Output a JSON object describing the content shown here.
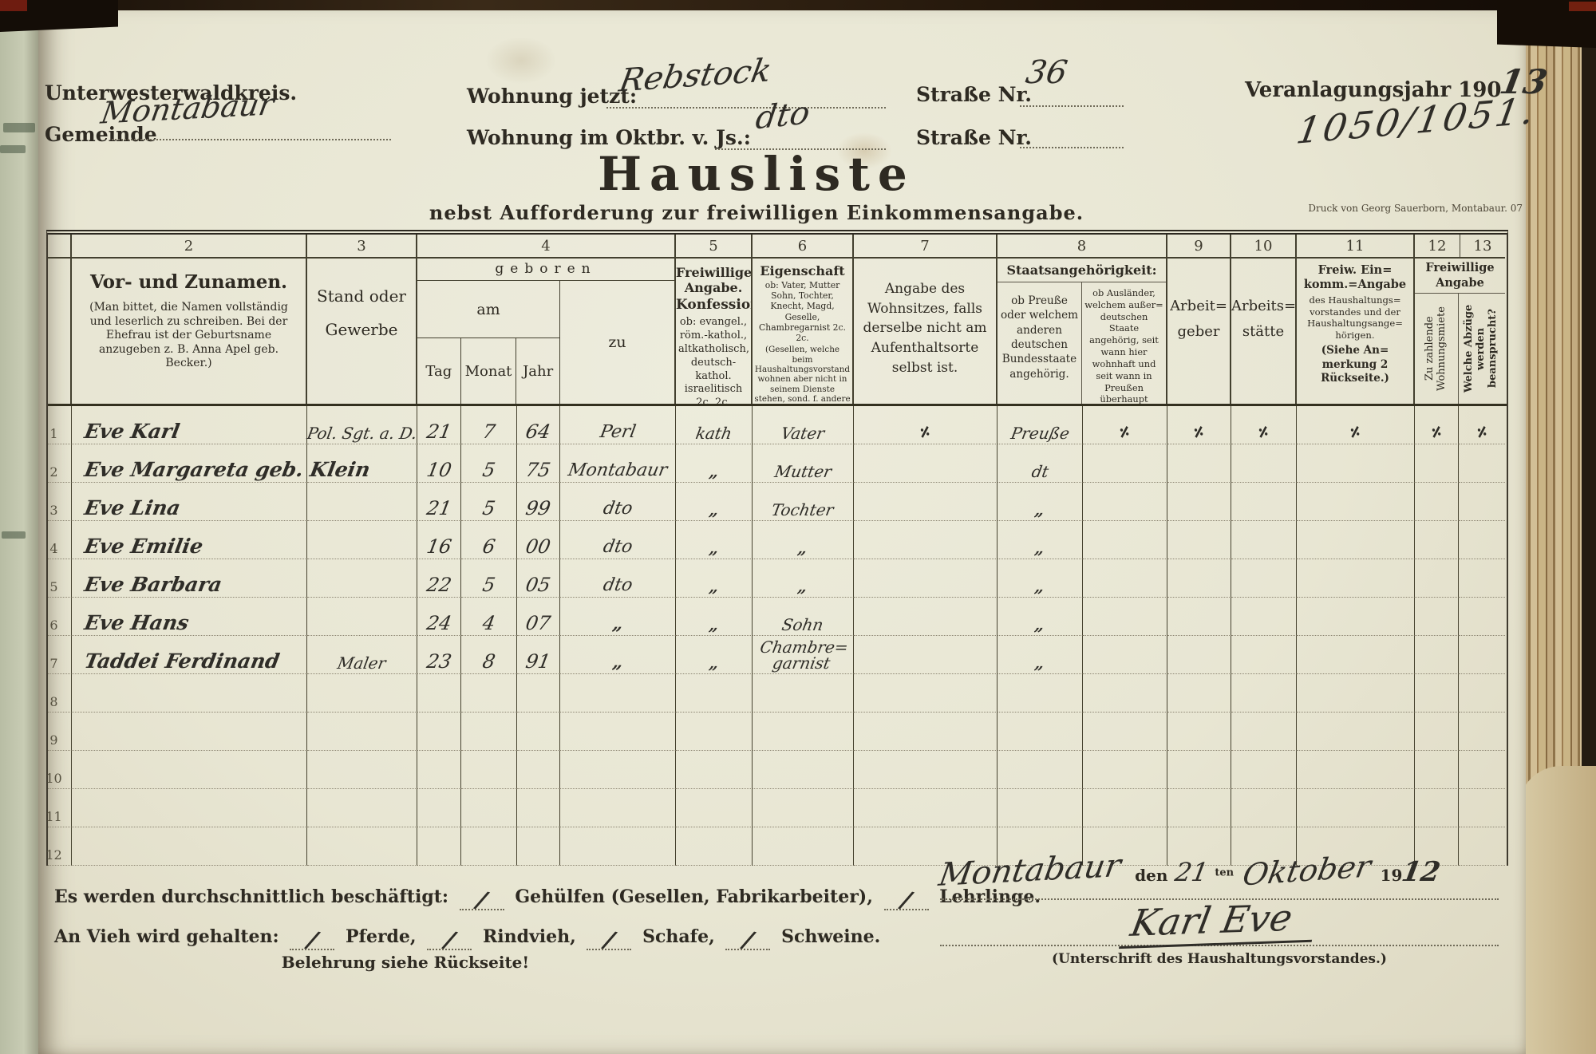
{
  "colors": {
    "paper": "#e8e6d3",
    "ink": "#2e2a22",
    "handwriting": "#2f2d28",
    "binding_dark": "#241c12",
    "page_edge_tan": "#c3ab80"
  },
  "header": {
    "district": "Unterwesterwaldkreis.",
    "gemeinde_label": "Gemeinde",
    "gemeinde_value": "Montabaur",
    "wohnung_jetzt_label": "Wohnung jetzt:",
    "wohnung_jetzt_value": "Rebstock",
    "strasse1_label": "Straße Nr.",
    "strasse1_value": "36",
    "wohnung_okt_label": "Wohnung im Oktbr. v. Js.:",
    "wohnung_okt_value": "dto",
    "strasse2_label": "Straße Nr.",
    "veranlagung_label": "Veranlagungsjahr 190",
    "veranlagung_value": "13",
    "file_number": "1050/1051.",
    "title": "Hausliste",
    "subtitle": "nebst Aufforderung zur freiwilligen Einkommensangabe.",
    "print_note": "Druck von Georg Sauerborn, Montabaur. 07"
  },
  "table": {
    "col_numbers": [
      "2",
      "3",
      "4",
      "5",
      "6",
      "7",
      "8",
      "9",
      "10",
      "11",
      "12",
      "13"
    ],
    "headers": {
      "names_title": "Vor- und Zunamen.",
      "names_note": "(Man bittet, die Namen vollständig und leserlich zu schreiben. Bei der Ehefrau ist der Geburtsname anzugeben z. B. Anna Apel geb. Becker.)",
      "stand": "Stand oder Gewerbe",
      "geboren": "geboren",
      "am": "am",
      "tag": "Tag",
      "monat": "Monat",
      "jahr": "Jahr",
      "zu": "zu",
      "konfession_bold1": "Freiwillige Angabe.",
      "konfession_bold2": "Konfession:",
      "konfession_body": "ob: evangel., röm.-kathol., altkatholisch, deutsch-kathol. israelitisch 2c. 2c.",
      "eigenschaft_title": "Eigenschaft",
      "eigenschaft_sub": "ob: Vater, Mutter Sohn, Tochter, Knecht, Magd, Geselle, Chambregarnist 2c. 2c.",
      "eigenschaft_note": "(Gesellen, welche beim Haushaltungsvorstand wohnen aber nicht in seinem Dienste stehen, sond. f. andere Meister arbeiten, sind als solche genau zu bezeichnen.)",
      "wohnsitz": "Angabe des Wohnsitzes, falls derselbe nicht am Aufenthaltsorte selbst ist.",
      "staat_title": "Staatsangehörigkeit:",
      "staat_a": "ob Preuße oder welchem anderen deutschen Bundesstaate angehörig.",
      "staat_b": "ob Ausländer, welchem außer= deutschen Staate angehörig, seit wann hier wohnhaft und seit wann in Preußen überhaupt wohnhaft.",
      "arbeitgeber": "Arbeit= geber",
      "arbeitsstaette": "Arbeits= stätte",
      "eink_title": "Freiw. Ein= komm.=Angabe",
      "eink_body": "des Haushaltungs= vorstandes und der Haushaltungsange= hörigen.",
      "eink_note": "(Siehe An= merkung 2 Rückseite.)",
      "freiw_title": "Freiwillige Angabe",
      "miete": "Zu zahlende Wohnungsmiete",
      "abzuege": "Welche Abzüge werden beansprucht?"
    },
    "rows": [
      [
        "1",
        "Eve Karl",
        "Pol. Sgt. a. D.",
        "21",
        "7",
        "64",
        "Perl",
        "kath",
        "Vater",
        "÷",
        "Preuße",
        "÷",
        "÷",
        "÷",
        "÷",
        "÷",
        "÷"
      ],
      [
        "2",
        "Eve Margareta geb. Klein",
        "",
        "10",
        "5",
        "75",
        "Montabaur",
        "„",
        "Mutter",
        "",
        "dt",
        "",
        "",
        "",
        "",
        "",
        ""
      ],
      [
        "3",
        "Eve Lina",
        "",
        "21",
        "5",
        "99",
        "dto",
        "„",
        "Tochter",
        "",
        "„",
        "",
        "",
        "",
        "",
        "",
        ""
      ],
      [
        "4",
        "Eve Emilie",
        "",
        "16",
        "6",
        "00",
        "dto",
        "„",
        "„",
        "",
        "„",
        "",
        "",
        "",
        "",
        "",
        ""
      ],
      [
        "5",
        "Eve Barbara",
        "",
        "22",
        "5",
        "05",
        "dto",
        "„",
        "„",
        "",
        "„",
        "",
        "",
        "",
        "",
        "",
        ""
      ],
      [
        "6",
        "Eve Hans",
        "",
        "24",
        "4",
        "07",
        "„",
        "„",
        "Sohn",
        "",
        "„",
        "",
        "",
        "",
        "",
        "",
        ""
      ],
      [
        "7",
        "Taddei Ferdinand",
        "Maler",
        "23",
        "8",
        "91",
        "„",
        "„",
        "Chambre= garnist",
        "",
        "„",
        "",
        "",
        "",
        "",
        "",
        ""
      ],
      [
        "8",
        "",
        "",
        "",
        "",
        "",
        "",
        "",
        "",
        "",
        "",
        "",
        "",
        "",
        "",
        "",
        ""
      ],
      [
        "9",
        "",
        "",
        "",
        "",
        "",
        "",
        "",
        "",
        "",
        "",
        "",
        "",
        "",
        "",
        "",
        ""
      ],
      [
        "10",
        "",
        "",
        "",
        "",
        "",
        "",
        "",
        "",
        "",
        "",
        "",
        "",
        "",
        "",
        "",
        ""
      ],
      [
        "11",
        "",
        "",
        "",
        "",
        "",
        "",
        "",
        "",
        "",
        "",
        "",
        "",
        "",
        "",
        "",
        ""
      ],
      [
        "12",
        "",
        "",
        "",
        "",
        "",
        "",
        "",
        "",
        "",
        "",
        "",
        "",
        "",
        "",
        "",
        ""
      ]
    ]
  },
  "footer": {
    "employment_prefix": "Es werden durchschnittlich beschäftigt:",
    "employment_mid": "Gehülfen (Gesellen, Fabrikarbeiter),",
    "employment_end": "Lehrlinge.",
    "livestock_prefix": "An Vieh wird gehalten:",
    "livestock_1": "Pferde,",
    "livestock_2": "Rindvieh,",
    "livestock_3": "Schafe,",
    "livestock_4": "Schweine.",
    "slash_mark": "/",
    "note": "Belehrung siehe Rückseite!",
    "sig_place": "Montabaur",
    "sig_den": "den",
    "sig_day": "21",
    "sig_ten": "ten",
    "sig_month": "Oktober",
    "sig_year_printed": "19",
    "sig_year_hw": "12",
    "sig_name": "Karl Eve",
    "sig_caption": "(Unterschrift des Haushaltungsvorstandes.)"
  }
}
